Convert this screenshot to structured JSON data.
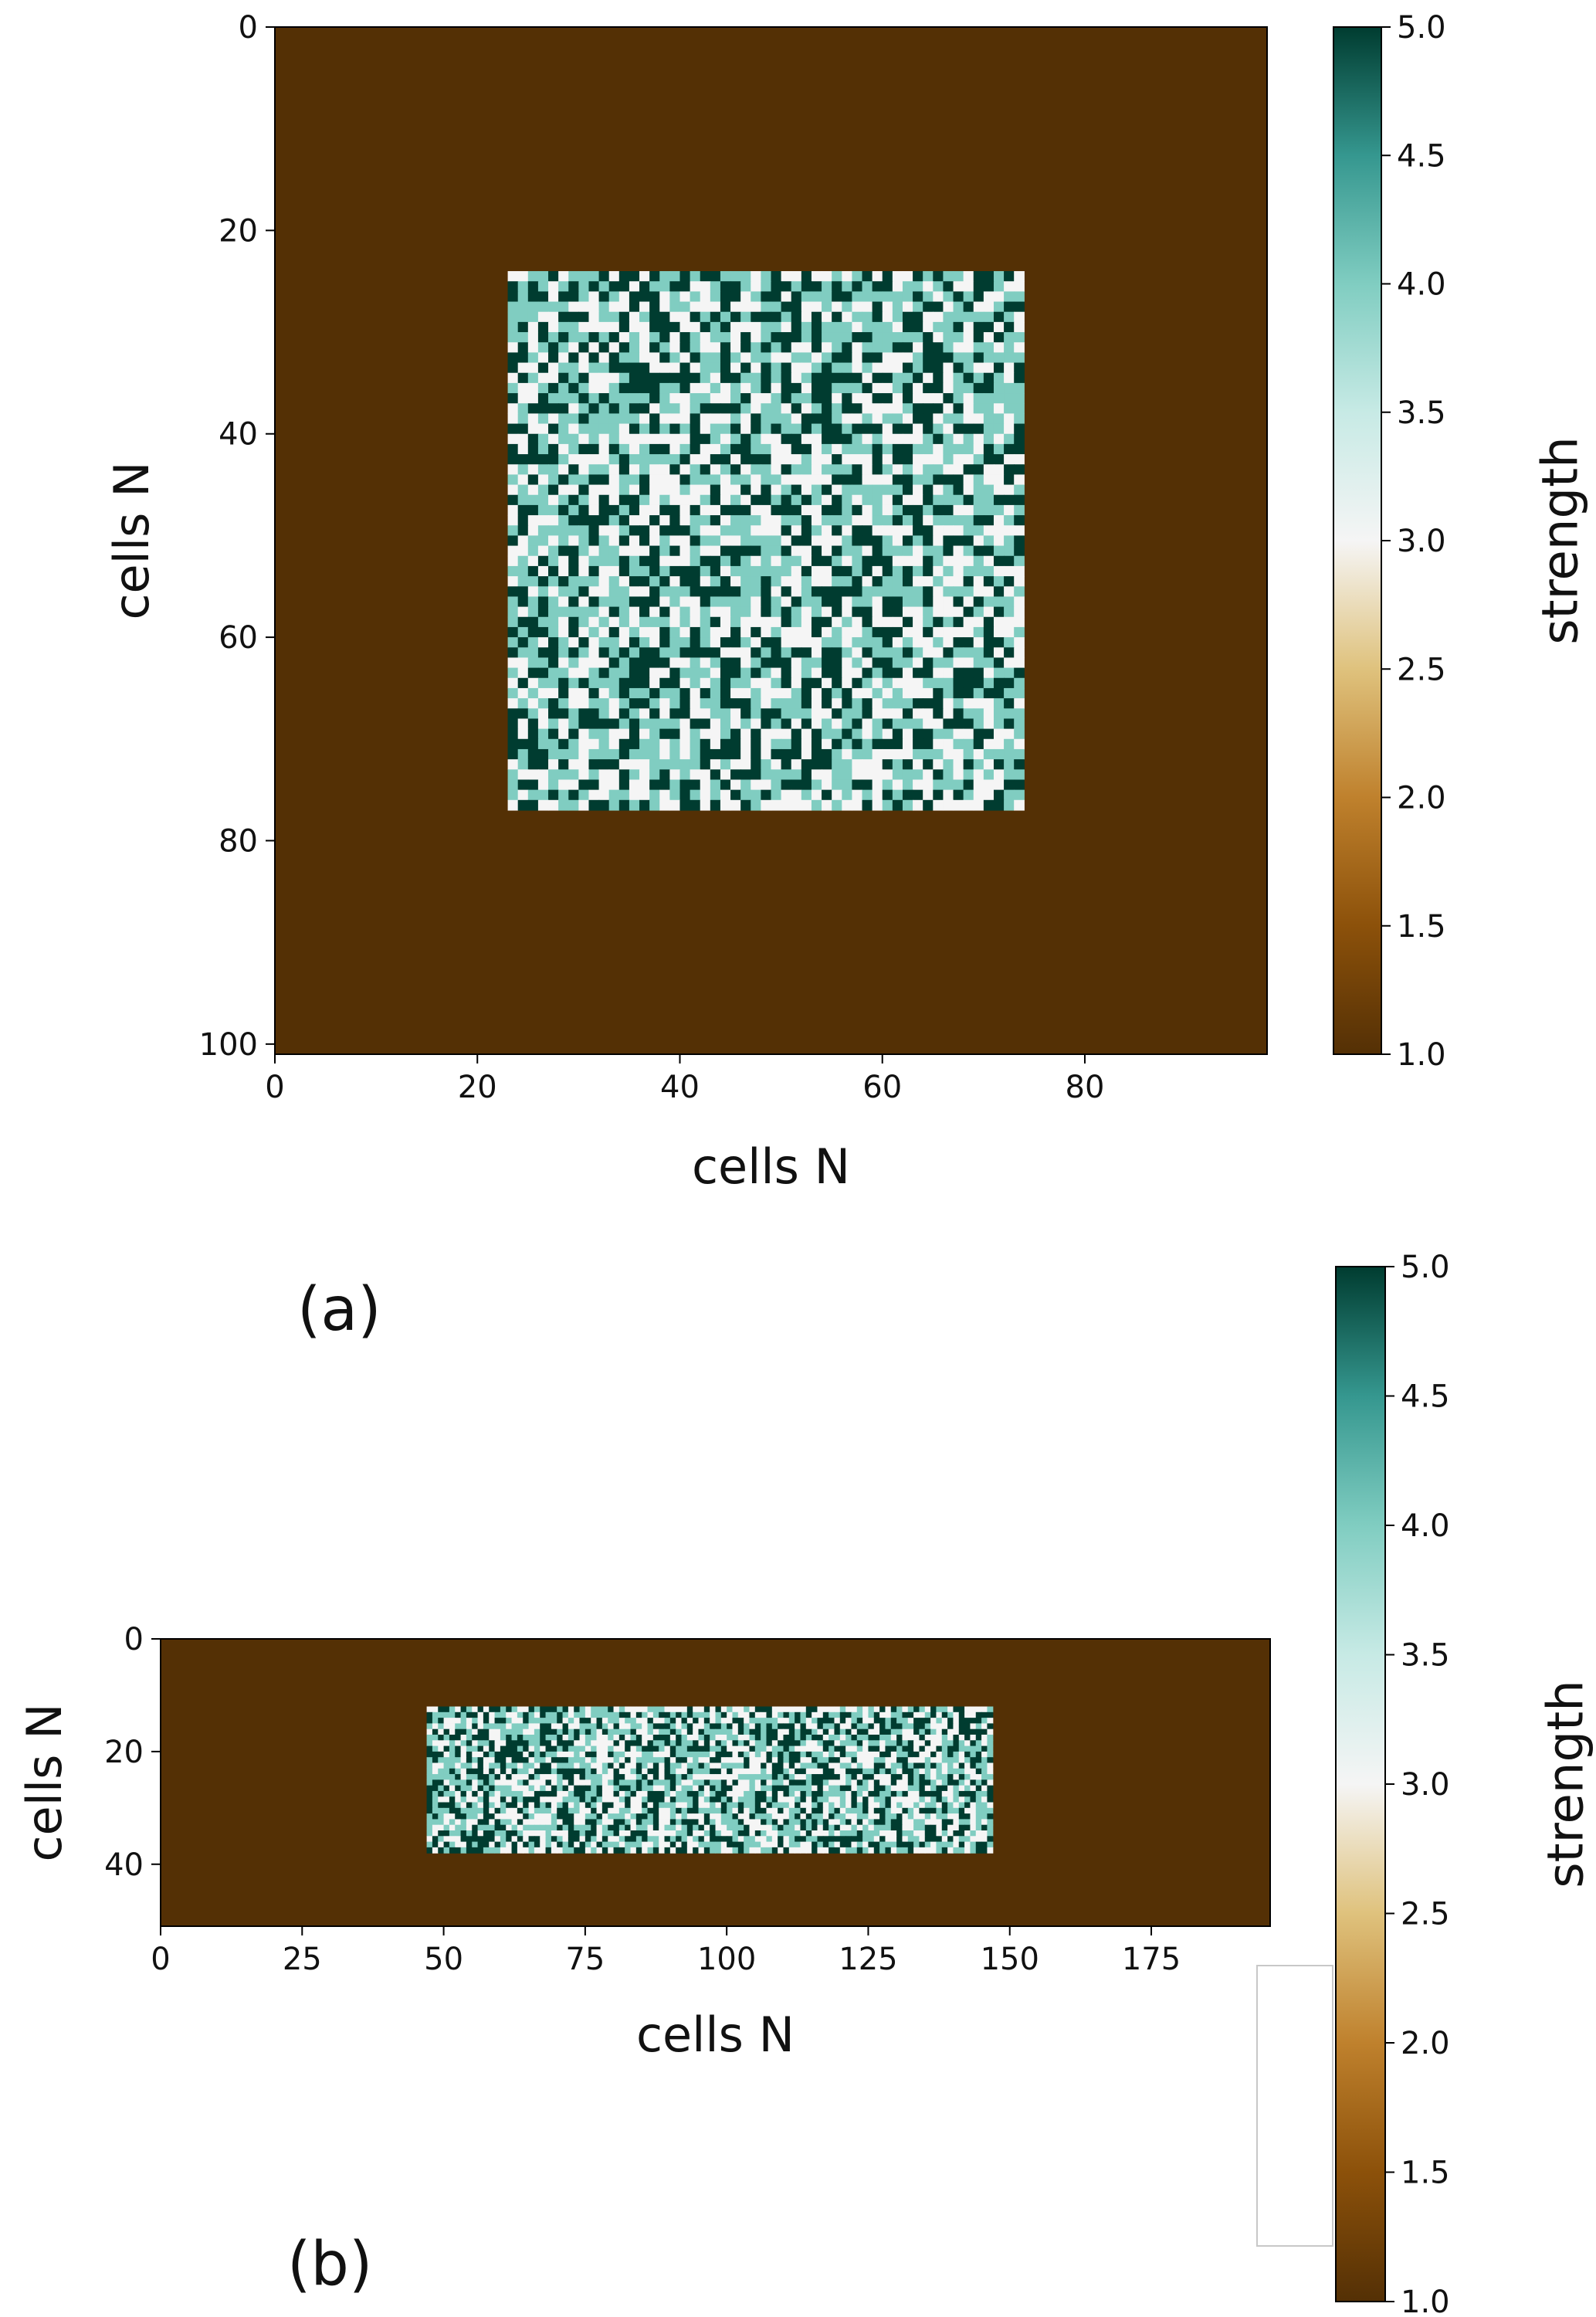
{
  "figure": {
    "panels": [
      {
        "panel_label": "(a)",
        "xlabel": "cells N",
        "ylabel": "cells N",
        "colorbar_label": "strength"
      },
      {
        "panel_label": "(b)",
        "xlabel": "cells N",
        "ylabel": "cells N",
        "colorbar_label": "strength"
      }
    ]
  },
  "chart_data": [
    {
      "type": "heatmap",
      "panel": "(a)",
      "xlabel": "cells N",
      "ylabel": "cells N",
      "grid_cols": 98,
      "grid_rows": 101,
      "xlim": [
        0,
        98
      ],
      "ylim": [
        101,
        0
      ],
      "xticks": [
        0,
        20,
        40,
        60,
        80
      ],
      "yticks": [
        0,
        20,
        40,
        60,
        80,
        100
      ],
      "background_value": 1.0,
      "random_block": {
        "cols": [
          23,
          74
        ],
        "rows": [
          24,
          77
        ],
        "values": [
          3.0,
          4.0,
          5.0
        ]
      },
      "colorbar": {
        "label": "strength",
        "min": 1.0,
        "max": 5.0,
        "ticks": [
          1.0,
          1.5,
          2.0,
          2.5,
          3.0,
          3.5,
          4.0,
          4.5,
          5.0
        ],
        "tick_labels": [
          "1.0",
          "1.5",
          "2.0",
          "2.5",
          "3.0",
          "3.5",
          "4.0",
          "4.5",
          "5.0"
        ],
        "colormap": "BrBG",
        "stops": [
          {
            "value": 1.0,
            "color": "#543005"
          },
          {
            "value": 1.5,
            "color": "#8c510a"
          },
          {
            "value": 2.0,
            "color": "#bf812d"
          },
          {
            "value": 2.5,
            "color": "#dfc27d"
          },
          {
            "value": 3.0,
            "color": "#f5f5f5"
          },
          {
            "value": 3.5,
            "color": "#c7eae5"
          },
          {
            "value": 4.0,
            "color": "#80cdc1"
          },
          {
            "value": 4.5,
            "color": "#35978f"
          },
          {
            "value": 5.0,
            "color": "#003c30"
          }
        ]
      }
    },
    {
      "type": "heatmap",
      "panel": "(b)",
      "xlabel": "cells N",
      "ylabel": "cells N",
      "grid_cols": 196,
      "grid_rows": 51,
      "xlim": [
        0,
        196
      ],
      "ylim": [
        51,
        0
      ],
      "xticks": [
        0,
        25,
        50,
        75,
        100,
        125,
        150,
        175
      ],
      "yticks": [
        0,
        20,
        40
      ],
      "background_value": 1.0,
      "random_block": {
        "cols": [
          47,
          147
        ],
        "rows": [
          12,
          38
        ],
        "values": [
          3.0,
          4.0,
          5.0
        ]
      },
      "colorbar": {
        "label": "strength",
        "min": 1.0,
        "max": 5.0,
        "ticks": [
          1.0,
          1.5,
          2.0,
          2.5,
          3.0,
          3.5,
          4.0,
          4.5,
          5.0
        ],
        "tick_labels": [
          "1.0",
          "1.5",
          "2.0",
          "2.5",
          "3.0",
          "3.5",
          "4.0",
          "4.5",
          "5.0"
        ],
        "colormap": "BrBG",
        "stops": [
          {
            "value": 1.0,
            "color": "#543005"
          },
          {
            "value": 1.5,
            "color": "#8c510a"
          },
          {
            "value": 2.0,
            "color": "#bf812d"
          },
          {
            "value": 2.5,
            "color": "#dfc27d"
          },
          {
            "value": 3.0,
            "color": "#f5f5f5"
          },
          {
            "value": 3.5,
            "color": "#c7eae5"
          },
          {
            "value": 4.0,
            "color": "#80cdc1"
          },
          {
            "value": 4.5,
            "color": "#35978f"
          },
          {
            "value": 5.0,
            "color": "#003c30"
          }
        ]
      }
    }
  ]
}
